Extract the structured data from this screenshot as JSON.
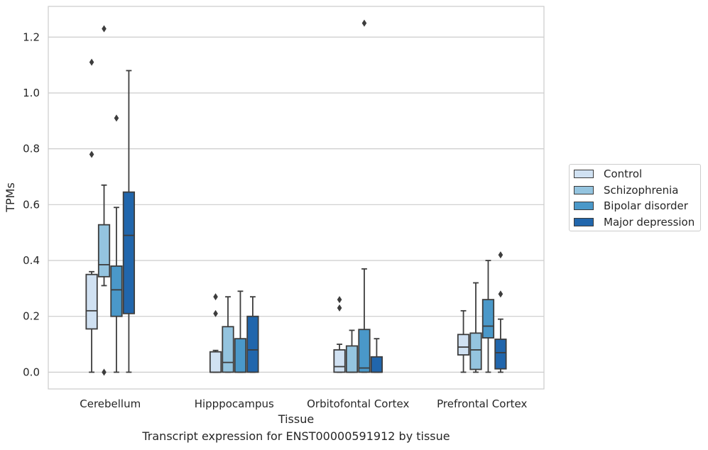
{
  "caption": "Transcript expression for ENST00000591912 by tissue",
  "chart_data": {
    "type": "box",
    "xlabel": "Tissue",
    "ylabel": "TPMs",
    "ylim": [
      -0.06,
      1.31
    ],
    "yticks": [
      "0.0",
      "0.2",
      "0.4",
      "0.6",
      "0.8",
      "1.0",
      "1.2"
    ],
    "grid": true,
    "legend_position": "right",
    "categories": [
      "Cerebellum",
      "Hipppocampus",
      "Orbitofontal Cortex",
      "Prefrontal Cortex"
    ],
    "series": [
      {
        "name": "Control",
        "color": "#d0e1f2",
        "boxes": [
          {
            "whisker_low": 0.0,
            "q1": 0.155,
            "median": 0.22,
            "q3": 0.35,
            "whisker_high": 0.36,
            "outliers": [
              0.78,
              1.11
            ]
          },
          {
            "whisker_low": 0.0,
            "q1": 0.0,
            "median": 0.0,
            "q3": 0.073,
            "whisker_high": 0.078,
            "outliers": [
              0.21,
              0.27
            ]
          },
          {
            "whisker_low": 0.0,
            "q1": 0.0,
            "median": 0.02,
            "q3": 0.08,
            "whisker_high": 0.1,
            "outliers": [
              0.23,
              0.26
            ]
          },
          {
            "whisker_low": 0.0,
            "q1": 0.062,
            "median": 0.09,
            "q3": 0.135,
            "whisker_high": 0.22,
            "outliers": []
          }
        ]
      },
      {
        "name": "Schizophrenia",
        "color": "#94c4df",
        "boxes": [
          {
            "whisker_low": 0.31,
            "q1": 0.342,
            "median": 0.385,
            "q3": 0.528,
            "whisker_high": 0.67,
            "outliers": [
              0.0,
              1.23
            ]
          },
          {
            "whisker_low": 0.0,
            "q1": 0.0,
            "median": 0.035,
            "q3": 0.163,
            "whisker_high": 0.27,
            "outliers": []
          },
          {
            "whisker_low": 0.0,
            "q1": 0.0,
            "median": 0.0,
            "q3": 0.094,
            "whisker_high": 0.15,
            "outliers": []
          },
          {
            "whisker_low": 0.0,
            "q1": 0.01,
            "median": 0.08,
            "q3": 0.14,
            "whisker_high": 0.32,
            "outliers": []
          }
        ]
      },
      {
        "name": "Bipolar disorder",
        "color": "#4a98c9",
        "boxes": [
          {
            "whisker_low": 0.0,
            "q1": 0.2,
            "median": 0.295,
            "q3": 0.38,
            "whisker_high": 0.59,
            "outliers": [
              0.91
            ]
          },
          {
            "whisker_low": 0.0,
            "q1": 0.0,
            "median": 0.0,
            "q3": 0.12,
            "whisker_high": 0.29,
            "outliers": []
          },
          {
            "whisker_low": 0.0,
            "q1": 0.0,
            "median": 0.015,
            "q3": 0.153,
            "whisker_high": 0.37,
            "outliers": [
              1.25
            ]
          },
          {
            "whisker_low": 0.0,
            "q1": 0.123,
            "median": 0.165,
            "q3": 0.26,
            "whisker_high": 0.4,
            "outliers": []
          }
        ]
      },
      {
        "name": "Major depression",
        "color": "#2166ac",
        "boxes": [
          {
            "whisker_low": 0.0,
            "q1": 0.21,
            "median": 0.49,
            "q3": 0.645,
            "whisker_high": 1.08,
            "outliers": []
          },
          {
            "whisker_low": 0.0,
            "q1": 0.0,
            "median": 0.08,
            "q3": 0.2,
            "whisker_high": 0.27,
            "outliers": []
          },
          {
            "whisker_low": 0.0,
            "q1": 0.0,
            "median": 0.0,
            "q3": 0.055,
            "whisker_high": 0.12,
            "outliers": []
          },
          {
            "whisker_low": 0.0,
            "q1": 0.012,
            "median": 0.07,
            "q3": 0.118,
            "whisker_high": 0.19,
            "outliers": [
              0.28,
              0.42
            ]
          }
        ]
      }
    ]
  }
}
